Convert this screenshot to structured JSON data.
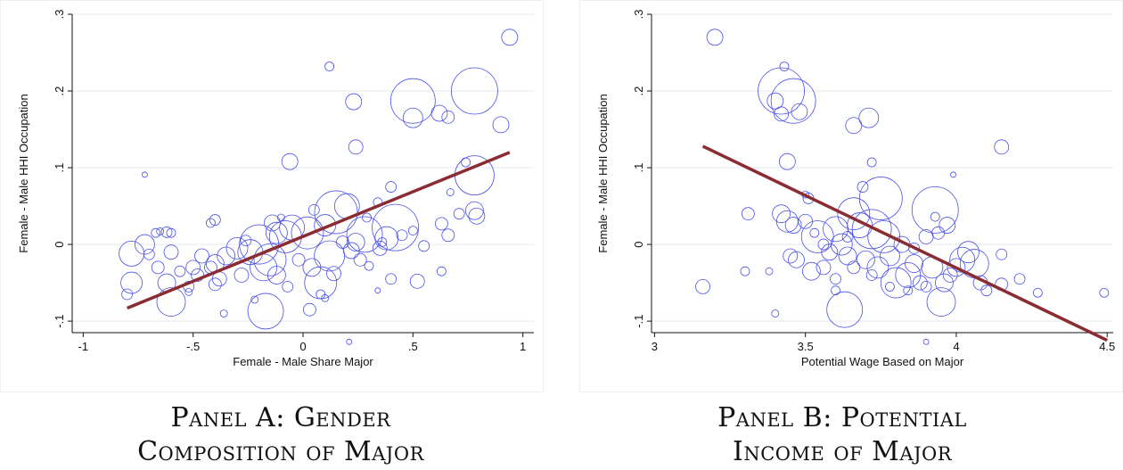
{
  "chart_data": [
    {
      "type": "scatter",
      "panel_caption": [
        "Panel A: Gender",
        "Composition of Major"
      ],
      "xlabel": "Female - Male Share Major",
      "ylabel": "Female - Male HHI Occupation",
      "xlim": [
        -1.05,
        1.05
      ],
      "ylim": [
        -0.115,
        0.3
      ],
      "x_ticks": [
        -1,
        -0.5,
        0,
        0.5,
        1
      ],
      "x_tick_labels": [
        "-1",
        "-.5",
        "0",
        ".5",
        "1"
      ],
      "y_ticks": [
        -0.1,
        0,
        0.1,
        0.2,
        0.3
      ],
      "y_tick_labels": [
        "-.1",
        "0",
        ".1",
        ".2",
        ".3"
      ],
      "grid": "horizontal",
      "marker_color": "#4a50e8",
      "fit_color": "#8b2c33",
      "fit_line": {
        "x": [
          -0.8,
          0.94
        ],
        "y": [
          -0.083,
          0.12
        ]
      },
      "points": [
        {
          "x": 0.94,
          "y": 0.27,
          "size": 9
        },
        {
          "x": 0.12,
          "y": 0.232,
          "size": 5
        },
        {
          "x": 0.23,
          "y": 0.186,
          "size": 9
        },
        {
          "x": 0.5,
          "y": 0.187,
          "size": 25
        },
        {
          "x": 0.5,
          "y": 0.165,
          "size": 11
        },
        {
          "x": 0.78,
          "y": 0.2,
          "size": 26
        },
        {
          "x": 0.62,
          "y": 0.171,
          "size": 9
        },
        {
          "x": 0.66,
          "y": 0.166,
          "size": 7
        },
        {
          "x": 0.9,
          "y": 0.156,
          "size": 9
        },
        {
          "x": 0.24,
          "y": 0.127,
          "size": 8
        },
        {
          "x": 0.78,
          "y": 0.09,
          "size": 22
        },
        {
          "x": -0.72,
          "y": 0.091,
          "size": 3
        },
        {
          "x": 0.74,
          "y": 0.107,
          "size": 5
        },
        {
          "x": -0.06,
          "y": 0.108,
          "size": 9
        },
        {
          "x": 0.4,
          "y": 0.075,
          "size": 6
        },
        {
          "x": 0.67,
          "y": 0.068,
          "size": 4
        },
        {
          "x": 0.78,
          "y": 0.044,
          "size": 10
        },
        {
          "x": 0.79,
          "y": 0.037,
          "size": 9
        },
        {
          "x": 0.71,
          "y": 0.04,
          "size": 6
        },
        {
          "x": 0.63,
          "y": 0.027,
          "size": 7
        },
        {
          "x": 0.66,
          "y": 0.012,
          "size": 7
        },
        {
          "x": 0.45,
          "y": 0.012,
          "size": 6
        },
        {
          "x": 0.34,
          "y": 0.055,
          "size": 5
        },
        {
          "x": 0.15,
          "y": 0.042,
          "size": 24
        },
        {
          "x": 0.2,
          "y": 0.05,
          "size": 14
        },
        {
          "x": 0.1,
          "y": 0.025,
          "size": 12
        },
        {
          "x": 0.42,
          "y": 0.022,
          "size": 26
        },
        {
          "x": 0.28,
          "y": 0.013,
          "size": 20
        },
        {
          "x": 0.38,
          "y": 0.008,
          "size": 13
        },
        {
          "x": 0.24,
          "y": 0.003,
          "size": 10
        },
        {
          "x": 0.35,
          "y": -0.005,
          "size": 8
        },
        {
          "x": 0.02,
          "y": 0.015,
          "size": 18
        },
        {
          "x": -0.05,
          "y": 0.022,
          "size": 14
        },
        {
          "x": -0.08,
          "y": 0.01,
          "size": 18
        },
        {
          "x": -0.12,
          "y": 0.015,
          "size": 12
        },
        {
          "x": -0.14,
          "y": 0.028,
          "size": 9
        },
        {
          "x": -0.2,
          "y": 0.0,
          "size": 22
        },
        {
          "x": -0.15,
          "y": -0.02,
          "size": 18
        },
        {
          "x": -0.18,
          "y": -0.03,
          "size": 15
        },
        {
          "x": -0.24,
          "y": -0.01,
          "size": 14
        },
        {
          "x": -0.3,
          "y": -0.005,
          "size": 12
        },
        {
          "x": -0.35,
          "y": -0.015,
          "size": 10
        },
        {
          "x": -0.28,
          "y": -0.04,
          "size": 8
        },
        {
          "x": -0.12,
          "y": -0.04,
          "size": 10
        },
        {
          "x": -0.07,
          "y": -0.055,
          "size": 6
        },
        {
          "x": 0.12,
          "y": -0.015,
          "size": 17
        },
        {
          "x": 0.08,
          "y": -0.05,
          "size": 18
        },
        {
          "x": 0.04,
          "y": -0.03,
          "size": 10
        },
        {
          "x": 0.14,
          "y": -0.038,
          "size": 8
        },
        {
          "x": 0.22,
          "y": -0.008,
          "size": 9
        },
        {
          "x": 0.18,
          "y": 0.003,
          "size": 7
        },
        {
          "x": 0.26,
          "y": -0.02,
          "size": 7
        },
        {
          "x": 0.3,
          "y": -0.028,
          "size": 5
        },
        {
          "x": 0.4,
          "y": -0.045,
          "size": 6
        },
        {
          "x": 0.52,
          "y": -0.048,
          "size": 8
        },
        {
          "x": 0.63,
          "y": -0.035,
          "size": 5
        },
        {
          "x": 0.34,
          "y": -0.06,
          "size": 3
        },
        {
          "x": 0.03,
          "y": -0.085,
          "size": 7
        },
        {
          "x": 0.08,
          "y": -0.065,
          "size": 5
        },
        {
          "x": -0.17,
          "y": -0.087,
          "size": 20
        },
        {
          "x": -0.22,
          "y": -0.072,
          "size": 4
        },
        {
          "x": 0.1,
          "y": -0.07,
          "size": 4
        },
        {
          "x": -0.36,
          "y": -0.09,
          "size": 4
        },
        {
          "x": 0.21,
          "y": -0.127,
          "size": 3
        },
        {
          "x": -0.6,
          "y": -0.075,
          "size": 16
        },
        {
          "x": -0.78,
          "y": -0.012,
          "size": 14
        },
        {
          "x": -0.78,
          "y": -0.05,
          "size": 12
        },
        {
          "x": -0.8,
          "y": -0.065,
          "size": 6
        },
        {
          "x": -0.72,
          "y": 0.0,
          "size": 11
        },
        {
          "x": -0.7,
          "y": -0.013,
          "size": 6
        },
        {
          "x": -0.67,
          "y": 0.015,
          "size": 5
        },
        {
          "x": -0.65,
          "y": 0.017,
          "size": 4
        },
        {
          "x": -0.62,
          "y": 0.016,
          "size": 6
        },
        {
          "x": -0.6,
          "y": 0.015,
          "size": 5
        },
        {
          "x": -0.6,
          "y": -0.01,
          "size": 8
        },
        {
          "x": -0.62,
          "y": -0.05,
          "size": 10
        },
        {
          "x": -0.66,
          "y": -0.03,
          "size": 7
        },
        {
          "x": -0.56,
          "y": -0.035,
          "size": 6
        },
        {
          "x": -0.52,
          "y": -0.055,
          "size": 6
        },
        {
          "x": -0.5,
          "y": -0.03,
          "size": 8
        },
        {
          "x": -0.48,
          "y": -0.04,
          "size": 7
        },
        {
          "x": -0.46,
          "y": -0.015,
          "size": 8
        },
        {
          "x": -0.42,
          "y": -0.03,
          "size": 7
        },
        {
          "x": -0.4,
          "y": -0.025,
          "size": 10
        },
        {
          "x": -0.38,
          "y": -0.045,
          "size": 8
        },
        {
          "x": -0.4,
          "y": -0.052,
          "size": 7
        },
        {
          "x": -0.42,
          "y": 0.028,
          "size": 5
        },
        {
          "x": -0.4,
          "y": 0.032,
          "size": 6
        },
        {
          "x": -0.26,
          "y": 0.005,
          "size": 6
        },
        {
          "x": -0.02,
          "y": -0.02,
          "size": 7
        },
        {
          "x": 0.05,
          "y": 0.045,
          "size": 6
        },
        {
          "x": -0.1,
          "y": 0.035,
          "size": 4
        },
        {
          "x": 0.29,
          "y": 0.035,
          "size": 5
        },
        {
          "x": 0.55,
          "y": -0.002,
          "size": 6
        },
        {
          "x": 0.5,
          "y": 0.018,
          "size": 5
        },
        {
          "x": -0.52,
          "y": -0.062,
          "size": 4
        },
        {
          "x": 0.36,
          "y": 0.003,
          "size": 5
        }
      ]
    },
    {
      "type": "scatter",
      "panel_caption": [
        "Panel B: Potential",
        "Income of Major"
      ],
      "xlabel": "Potential Wage Based on Major",
      "ylabel": "Female - Male HHI Occupation",
      "xlim": [
        2.99,
        4.52
      ],
      "ylim": [
        -0.115,
        0.3
      ],
      "x_ticks": [
        3,
        3.5,
        4,
        4.5
      ],
      "x_tick_labels": [
        "3",
        "3.5",
        "4",
        "4.5"
      ],
      "y_ticks": [
        -0.1,
        0,
        0.1,
        0.2,
        0.3
      ],
      "y_tick_labels": [
        "-.1",
        "0",
        ".1",
        ".2",
        ".3"
      ],
      "grid": "horizontal",
      "marker_color": "#4a50e8",
      "fit_color": "#8b2c33",
      "fit_line": {
        "x": [
          3.16,
          4.5
        ],
        "y": [
          0.128,
          -0.125
        ]
      },
      "points": [
        {
          "x": 3.2,
          "y": 0.27,
          "size": 9
        },
        {
          "x": 3.43,
          "y": 0.232,
          "size": 5
        },
        {
          "x": 3.42,
          "y": 0.2,
          "size": 26
        },
        {
          "x": 3.46,
          "y": 0.187,
          "size": 25
        },
        {
          "x": 3.42,
          "y": 0.17,
          "size": 8
        },
        {
          "x": 3.48,
          "y": 0.173,
          "size": 9
        },
        {
          "x": 3.4,
          "y": 0.187,
          "size": 9
        },
        {
          "x": 3.71,
          "y": 0.165,
          "size": 11
        },
        {
          "x": 3.66,
          "y": 0.155,
          "size": 9
        },
        {
          "x": 4.15,
          "y": 0.127,
          "size": 8
        },
        {
          "x": 3.44,
          "y": 0.108,
          "size": 9
        },
        {
          "x": 3.72,
          "y": 0.107,
          "size": 5
        },
        {
          "x": 3.99,
          "y": 0.091,
          "size": 3
        },
        {
          "x": 3.75,
          "y": 0.06,
          "size": 24
        },
        {
          "x": 3.69,
          "y": 0.075,
          "size": 6
        },
        {
          "x": 3.93,
          "y": 0.045,
          "size": 26
        },
        {
          "x": 3.5,
          "y": 0.065,
          "size": 4
        },
        {
          "x": 3.51,
          "y": 0.06,
          "size": 6
        },
        {
          "x": 3.31,
          "y": 0.04,
          "size": 7
        },
        {
          "x": 3.42,
          "y": 0.04,
          "size": 10
        },
        {
          "x": 3.44,
          "y": 0.03,
          "size": 12
        },
        {
          "x": 3.46,
          "y": 0.025,
          "size": 9
        },
        {
          "x": 3.5,
          "y": 0.03,
          "size": 8
        },
        {
          "x": 3.54,
          "y": 0.01,
          "size": 18
        },
        {
          "x": 3.6,
          "y": 0.02,
          "size": 14
        },
        {
          "x": 3.66,
          "y": 0.04,
          "size": 18
        },
        {
          "x": 3.68,
          "y": 0.025,
          "size": 14
        },
        {
          "x": 3.72,
          "y": 0.02,
          "size": 22
        },
        {
          "x": 3.76,
          "y": 0.01,
          "size": 18
        },
        {
          "x": 3.62,
          "y": 0.0,
          "size": 12
        },
        {
          "x": 3.64,
          "y": -0.015,
          "size": 10
        },
        {
          "x": 3.58,
          "y": -0.01,
          "size": 9
        },
        {
          "x": 3.56,
          "y": -0.03,
          "size": 8
        },
        {
          "x": 3.52,
          "y": -0.035,
          "size": 10
        },
        {
          "x": 3.47,
          "y": -0.02,
          "size": 9
        },
        {
          "x": 3.45,
          "y": -0.015,
          "size": 8
        },
        {
          "x": 3.38,
          "y": -0.035,
          "size": 4
        },
        {
          "x": 3.3,
          "y": -0.035,
          "size": 5
        },
        {
          "x": 3.16,
          "y": -0.055,
          "size": 8
        },
        {
          "x": 3.4,
          "y": -0.09,
          "size": 4
        },
        {
          "x": 3.63,
          "y": -0.085,
          "size": 20
        },
        {
          "x": 3.6,
          "y": -0.06,
          "size": 5
        },
        {
          "x": 3.9,
          "y": -0.127,
          "size": 3
        },
        {
          "x": 3.8,
          "y": -0.05,
          "size": 17
        },
        {
          "x": 3.84,
          "y": -0.04,
          "size": 14
        },
        {
          "x": 3.86,
          "y": -0.025,
          "size": 10
        },
        {
          "x": 3.88,
          "y": -0.05,
          "size": 8
        },
        {
          "x": 3.92,
          "y": -0.03,
          "size": 12
        },
        {
          "x": 3.95,
          "y": -0.075,
          "size": 16
        },
        {
          "x": 3.96,
          "y": -0.05,
          "size": 10
        },
        {
          "x": 3.98,
          "y": -0.04,
          "size": 8
        },
        {
          "x": 4.0,
          "y": -0.03,
          "size": 10
        },
        {
          "x": 4.02,
          "y": -0.02,
          "size": 14
        },
        {
          "x": 4.04,
          "y": -0.01,
          "size": 12
        },
        {
          "x": 4.06,
          "y": -0.025,
          "size": 16
        },
        {
          "x": 4.08,
          "y": -0.05,
          "size": 8
        },
        {
          "x": 4.1,
          "y": -0.06,
          "size": 6
        },
        {
          "x": 4.15,
          "y": -0.052,
          "size": 7
        },
        {
          "x": 4.15,
          "y": -0.013,
          "size": 6
        },
        {
          "x": 4.21,
          "y": -0.045,
          "size": 6
        },
        {
          "x": 4.27,
          "y": -0.063,
          "size": 5
        },
        {
          "x": 4.49,
          "y": -0.063,
          "size": 5
        },
        {
          "x": 3.7,
          "y": -0.02,
          "size": 10
        },
        {
          "x": 3.74,
          "y": -0.03,
          "size": 12
        },
        {
          "x": 3.78,
          "y": -0.015,
          "size": 11
        },
        {
          "x": 3.82,
          "y": 0.0,
          "size": 9
        },
        {
          "x": 3.9,
          "y": 0.01,
          "size": 8
        },
        {
          "x": 3.94,
          "y": 0.015,
          "size": 7
        },
        {
          "x": 3.97,
          "y": 0.025,
          "size": 9
        },
        {
          "x": 3.93,
          "y": 0.036,
          "size": 5
        },
        {
          "x": 3.66,
          "y": -0.03,
          "size": 7
        },
        {
          "x": 3.6,
          "y": -0.045,
          "size": 6
        },
        {
          "x": 3.56,
          "y": 0.0,
          "size": 6
        },
        {
          "x": 3.53,
          "y": 0.015,
          "size": 5
        },
        {
          "x": 3.9,
          "y": -0.055,
          "size": 6
        },
        {
          "x": 3.84,
          "y": -0.06,
          "size": 5
        },
        {
          "x": 3.72,
          "y": -0.04,
          "size": 6
        },
        {
          "x": 3.78,
          "y": -0.055,
          "size": 5
        },
        {
          "x": 3.64,
          "y": 0.01,
          "size": 6
        },
        {
          "x": 3.86,
          "y": -0.005,
          "size": 6
        }
      ]
    }
  ]
}
